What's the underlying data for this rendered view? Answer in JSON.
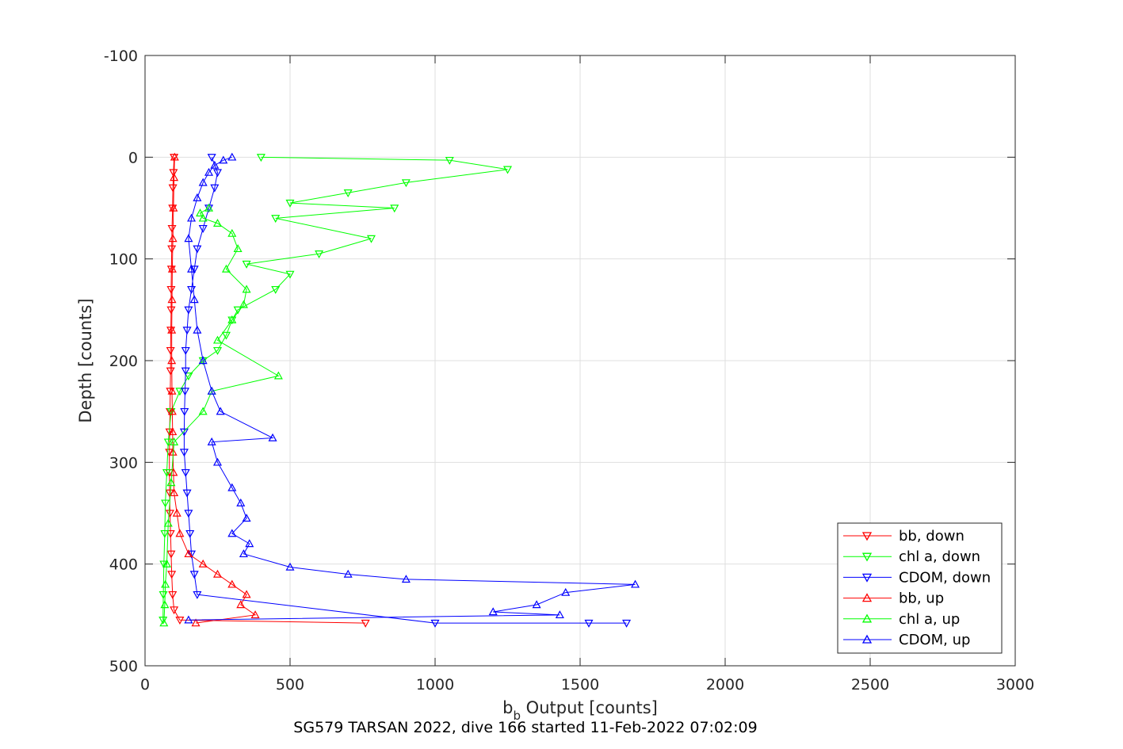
{
  "chart_data": {
    "type": "scatter",
    "xlabel_main": "b",
    "xlabel_sub": "b",
    "xlabel_rest": " Output [counts]",
    "ylabel": "Depth [counts]",
    "caption": "SG579 TARSAN 2022, dive 166 started 11-Feb-2022 07:02:09",
    "xlim": [
      0,
      3000
    ],
    "ylim": [
      -100,
      500
    ],
    "y_reversed": true,
    "grid": true,
    "legend_position": "bottom-right",
    "xticks": [
      0,
      500,
      1000,
      1500,
      2000,
      2500,
      3000
    ],
    "yticks": [
      -100,
      0,
      100,
      200,
      300,
      400,
      500
    ],
    "xtick_labels": [
      "0",
      "500",
      "1000",
      "1500",
      "2000",
      "2500",
      "3000"
    ],
    "ytick_labels": [
      "-100",
      "0",
      "100",
      "200",
      "300",
      "400",
      "500"
    ],
    "series": [
      {
        "name": "bb, down",
        "color": "#ff0000",
        "marker": "triangle-down",
        "x": [
          100,
          98,
          96,
          95,
          93,
          92,
          91,
          90,
          90,
          89,
          88,
          88,
          87,
          86,
          85,
          84,
          84,
          85,
          86,
          88,
          90,
          92,
          95,
          100,
          120,
          760
        ],
        "y": [
          0,
          15,
          30,
          50,
          70,
          90,
          110,
          130,
          150,
          170,
          190,
          210,
          230,
          250,
          270,
          290,
          310,
          330,
          350,
          370,
          390,
          410,
          430,
          445,
          455,
          458
        ]
      },
      {
        "name": "chl a, down",
        "color": "#00ff00",
        "marker": "triangle-down",
        "x": [
          400,
          1050,
          1250,
          900,
          700,
          500,
          860,
          450,
          780,
          600,
          350,
          500,
          450,
          320,
          300,
          280,
          250,
          200,
          150,
          120,
          90,
          80,
          75,
          70,
          68,
          65,
          63,
          62
        ],
        "y": [
          0,
          3,
          12,
          25,
          35,
          45,
          50,
          60,
          80,
          95,
          105,
          115,
          130,
          150,
          160,
          175,
          190,
          200,
          215,
          230,
          250,
          280,
          310,
          340,
          370,
          400,
          430,
          455
        ]
      },
      {
        "name": "CDOM, down",
        "color": "#0000ff",
        "marker": "triangle-down",
        "x": [
          230,
          250,
          240,
          220,
          200,
          180,
          170,
          160,
          150,
          145,
          140,
          140,
          138,
          136,
          135,
          135,
          140,
          145,
          150,
          155,
          160,
          170,
          180,
          1000,
          1530,
          1660
        ],
        "y": [
          0,
          15,
          30,
          50,
          70,
          90,
          110,
          130,
          150,
          170,
          190,
          210,
          230,
          250,
          270,
          290,
          310,
          330,
          350,
          370,
          390,
          410,
          430,
          458,
          458,
          458
        ]
      },
      {
        "name": "bb, up",
        "color": "#ff0000",
        "marker": "triangle-up",
        "x": [
          175,
          380,
          330,
          350,
          300,
          250,
          200,
          150,
          120,
          110,
          100,
          98,
          96,
          95,
          94,
          93,
          92,
          92,
          93,
          94,
          96,
          98,
          100,
          102
        ],
        "y": [
          458,
          450,
          440,
          430,
          420,
          410,
          400,
          390,
          370,
          350,
          330,
          310,
          290,
          270,
          250,
          230,
          200,
          170,
          140,
          110,
          80,
          50,
          20,
          0
        ]
      },
      {
        "name": "chl a, up",
        "color": "#00ff00",
        "marker": "triangle-up",
        "x": [
          65,
          68,
          70,
          75,
          80,
          90,
          100,
          200,
          230,
          460,
          250,
          300,
          340,
          350,
          280,
          320,
          300,
          250,
          200,
          190,
          220
        ],
        "y": [
          458,
          440,
          420,
          400,
          360,
          320,
          280,
          250,
          230,
          215,
          180,
          160,
          145,
          130,
          110,
          90,
          75,
          65,
          60,
          55,
          50
        ]
      },
      {
        "name": "CDOM, up",
        "color": "#0000ff",
        "marker": "triangle-up",
        "x": [
          150,
          1430,
          1200,
          1350,
          1450,
          1690,
          900,
          700,
          500,
          340,
          360,
          300,
          350,
          330,
          300,
          250,
          230,
          440,
          260,
          230,
          200,
          180,
          170,
          160,
          150,
          160,
          180,
          200,
          220,
          240,
          270,
          300
        ],
        "y": [
          455,
          450,
          447,
          440,
          428,
          420,
          415,
          410,
          403,
          390,
          380,
          370,
          355,
          340,
          325,
          300,
          280,
          276,
          250,
          230,
          200,
          170,
          140,
          110,
          80,
          60,
          40,
          25,
          15,
          8,
          3,
          0
        ]
      }
    ]
  }
}
